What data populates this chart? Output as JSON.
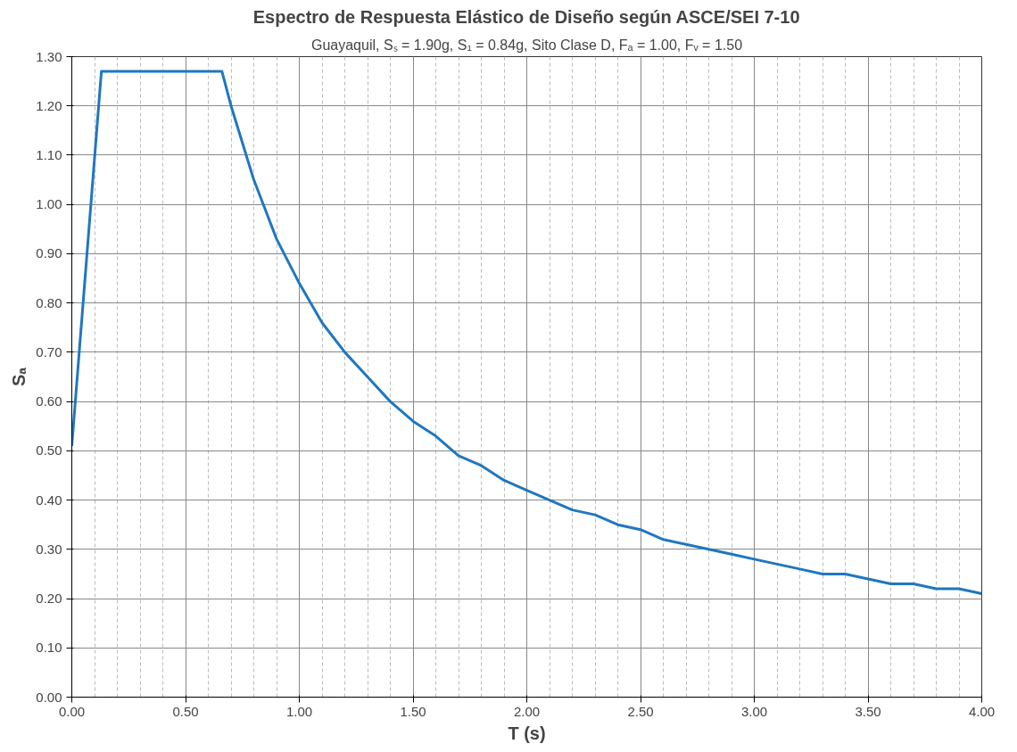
{
  "chart_data": {
    "type": "line",
    "title": "Espectro de Respuesta Elástico de Diseño según ASCE/SEI 7-10",
    "subtitle": "Guayaquil, Sₛ = 1.90g, S₁ = 0.84g, Sito Clase D, Fₐ = 1.00, Fᵥ = 1.50",
    "xlabel": "T (s)",
    "ylabel": "Sₐ",
    "x": [
      0,
      0.13,
      0.66,
      0.7,
      0.8,
      0.9,
      1.0,
      1.1,
      1.2,
      1.3,
      1.4,
      1.5,
      1.6,
      1.7,
      1.8,
      1.9,
      2.0,
      2.1,
      2.2,
      2.3,
      2.4,
      2.5,
      2.6,
      2.7,
      2.8,
      2.9,
      3.0,
      3.1,
      3.2,
      3.3,
      3.4,
      3.5,
      3.6,
      3.7,
      3.8,
      3.9,
      4.0
    ],
    "series": [
      {
        "color": "#1f77c0",
        "values": [
          0.51,
          1.27,
          1.27,
          1.2,
          1.05,
          0.93,
          0.84,
          0.76,
          0.7,
          0.65,
          0.6,
          0.56,
          0.53,
          0.49,
          0.47,
          0.44,
          0.42,
          0.4,
          0.38,
          0.37,
          0.35,
          0.34,
          0.32,
          0.31,
          0.3,
          0.29,
          0.28,
          0.27,
          0.26,
          0.25,
          0.25,
          0.24,
          0.23,
          0.23,
          0.22,
          0.22,
          0.21
        ]
      }
    ],
    "xlim": [
      0,
      4
    ],
    "ylim": [
      0,
      1.3
    ],
    "xticks": [
      {
        "value": 0,
        "label": "0.00"
      },
      {
        "value": 0.1,
        "label": null
      },
      {
        "value": 0.2,
        "label": null
      },
      {
        "value": 0.3,
        "label": null
      },
      {
        "value": 0.4,
        "label": null
      },
      {
        "value": 0.5,
        "label": "0.50"
      },
      {
        "value": 0.6,
        "label": null
      },
      {
        "value": 0.7,
        "label": null
      },
      {
        "value": 0.8,
        "label": null
      },
      {
        "value": 0.9,
        "label": null
      },
      {
        "value": 1,
        "label": "1.00"
      },
      {
        "value": 1.1,
        "label": null
      },
      {
        "value": 1.2,
        "label": null
      },
      {
        "value": 1.3,
        "label": null
      },
      {
        "value": 1.4,
        "label": null
      },
      {
        "value": 1.5,
        "label": "1.50"
      },
      {
        "value": 1.6,
        "label": null
      },
      {
        "value": 1.7,
        "label": null
      },
      {
        "value": 1.8,
        "label": null
      },
      {
        "value": 1.9,
        "label": null
      },
      {
        "value": 2,
        "label": "2.00"
      },
      {
        "value": 2.1,
        "label": null
      },
      {
        "value": 2.2,
        "label": null
      },
      {
        "value": 2.3,
        "label": null
      },
      {
        "value": 2.4,
        "label": null
      },
      {
        "value": 2.5,
        "label": "2.50"
      },
      {
        "value": 2.6,
        "label": null
      },
      {
        "value": 2.7,
        "label": null
      },
      {
        "value": 2.8,
        "label": null
      },
      {
        "value": 2.9,
        "label": null
      },
      {
        "value": 3,
        "label": "3.00"
      },
      {
        "value": 3.1,
        "label": null
      },
      {
        "value": 3.2,
        "label": null
      },
      {
        "value": 3.3,
        "label": null
      },
      {
        "value": 3.4,
        "label": null
      },
      {
        "value": 3.5,
        "label": "3.50"
      },
      {
        "value": 3.6,
        "label": null
      },
      {
        "value": 3.7,
        "label": null
      },
      {
        "value": 3.8,
        "label": null
      },
      {
        "value": 3.9,
        "label": null
      },
      {
        "value": 4,
        "label": "4.00"
      }
    ],
    "yticks": [
      {
        "value": 0,
        "label": "0.00"
      },
      {
        "value": 0.1,
        "label": "0.10"
      },
      {
        "value": 0.2,
        "label": "0.20"
      },
      {
        "value": 0.3,
        "label": "0.30"
      },
      {
        "value": 0.4,
        "label": "0.40"
      },
      {
        "value": 0.5,
        "label": "0.50"
      },
      {
        "value": 0.6,
        "label": "0.60"
      },
      {
        "value": 0.7,
        "label": "0.70"
      },
      {
        "value": 0.8,
        "label": "0.80"
      },
      {
        "value": 0.9,
        "label": "0.90"
      },
      {
        "value": 1.0,
        "label": "1.00"
      },
      {
        "value": 1.1,
        "label": "1.10"
      },
      {
        "value": 1.2,
        "label": "1.20"
      },
      {
        "value": 1.3,
        "label": "1.30"
      }
    ],
    "grid": true,
    "marker": "none",
    "line_style": "solid"
  }
}
